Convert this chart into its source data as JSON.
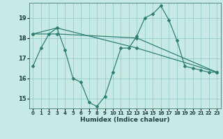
{
  "xlabel": "Humidex (Indice chaleur)",
  "bg_color": "#c8eae5",
  "grid_color": "#99cccc",
  "line_color": "#2e7f72",
  "xlim": [
    -0.5,
    23.5
  ],
  "ylim": [
    14.5,
    19.75
  ],
  "yticks": [
    15,
    16,
    17,
    18,
    19
  ],
  "xticks": [
    0,
    1,
    2,
    3,
    4,
    5,
    6,
    7,
    8,
    9,
    10,
    11,
    12,
    13,
    14,
    15,
    16,
    17,
    18,
    19,
    20,
    21,
    22,
    23
  ],
  "series1_x": [
    0,
    1,
    2,
    3,
    4,
    5,
    6,
    7,
    8,
    9,
    10,
    11,
    12,
    13,
    14,
    15,
    16,
    17,
    18,
    19,
    20,
    21,
    22,
    23
  ],
  "series1_y": [
    16.6,
    17.5,
    18.2,
    18.5,
    17.4,
    16.0,
    15.8,
    14.8,
    14.6,
    15.1,
    16.3,
    17.5,
    17.5,
    18.1,
    19.0,
    19.2,
    19.6,
    18.9,
    17.9,
    16.6,
    16.5,
    16.4,
    16.3,
    16.3
  ],
  "series2_x": [
    0,
    3,
    13,
    23
  ],
  "series2_y": [
    18.2,
    18.2,
    18.0,
    16.3
  ],
  "series3_x": [
    0,
    3,
    13,
    23
  ],
  "series3_y": [
    18.2,
    18.5,
    17.5,
    16.3
  ]
}
